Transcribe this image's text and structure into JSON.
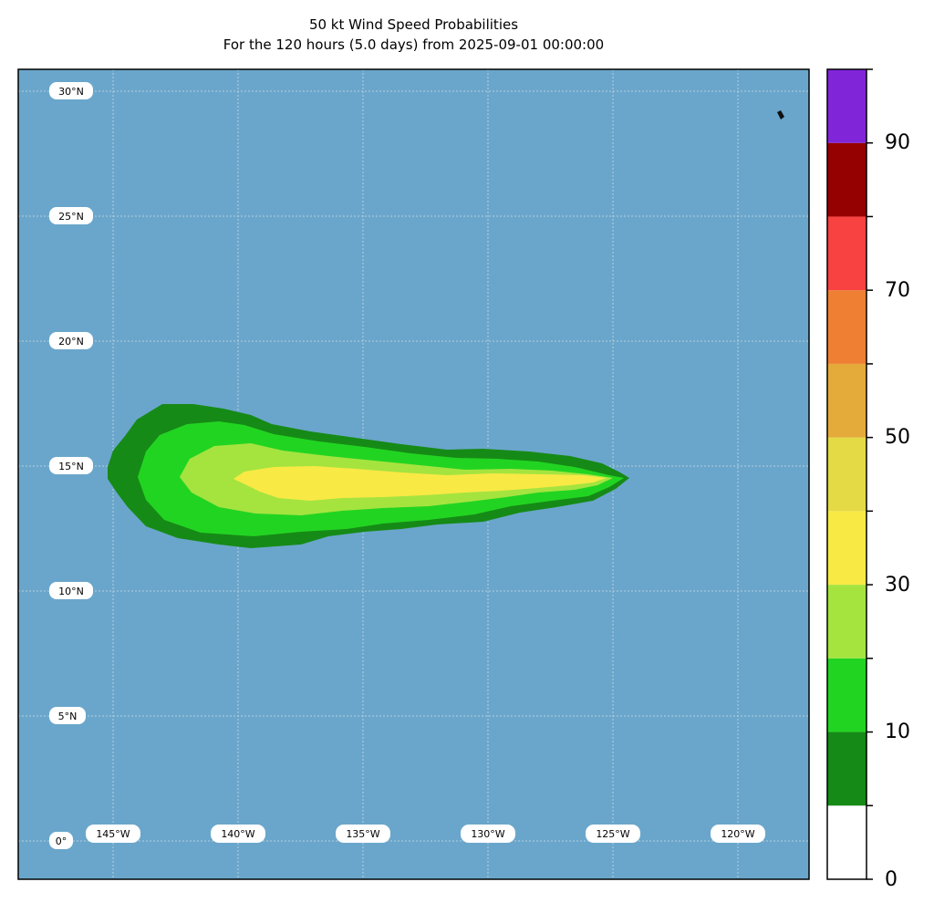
{
  "title": "50 kt Wind Speed Probabilities",
  "subtitle": "For the 120 hours (5.0 days) from 2025-09-01 00:00:00",
  "map": {
    "background_color": "#6aa6cb",
    "lat_labels": [
      "30°N",
      "25°N",
      "20°N",
      "15°N",
      "10°N",
      "5°N",
      "0°"
    ],
    "lon_labels": [
      "145°W",
      "140°W",
      "135°W",
      "130°W",
      "125°W",
      "120°W"
    ],
    "probability_shading": {
      "outer_5_10": "#168a16",
      "10_20": "#22d422",
      "20_30": "#a5e43f",
      "30_40": "#f9e945"
    }
  },
  "colorbar": {
    "tick_labels": [
      "0",
      "10",
      "30",
      "50",
      "70",
      "90"
    ],
    "levels": [
      0,
      10,
      20,
      30,
      40,
      50,
      60,
      70,
      80,
      90,
      100
    ],
    "colors": [
      "#ffffff",
      "#168a16",
      "#22d422",
      "#a5e43f",
      "#f9e945",
      "#e4da45",
      "#e4aa3a",
      "#ee7f33",
      "#f84141",
      "#950000",
      "#8125d9"
    ]
  }
}
